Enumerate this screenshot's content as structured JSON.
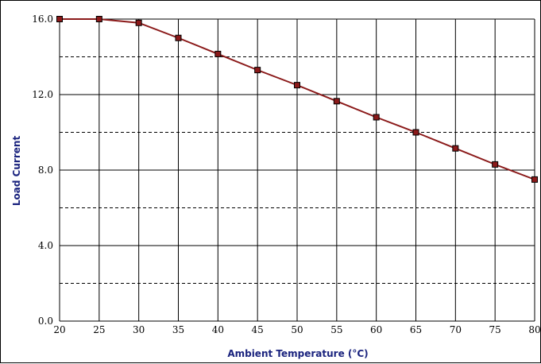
{
  "chart_data": {
    "type": "line",
    "title": "",
    "xlabel": "Ambient Temperature (°C)",
    "ylabel": "Load Current",
    "x": [
      20,
      25,
      30,
      35,
      40,
      45,
      50,
      55,
      60,
      65,
      70,
      75,
      80
    ],
    "series": [
      {
        "values": [
          16.0,
          16.0,
          15.8,
          15.0,
          14.15,
          13.3,
          12.5,
          11.65,
          10.8,
          10.0,
          9.15,
          8.3,
          7.5
        ]
      }
    ],
    "xlim": [
      20,
      80
    ],
    "ylim": [
      0,
      16
    ],
    "x_ticks": [
      20,
      25,
      30,
      35,
      40,
      45,
      50,
      55,
      60,
      65,
      70,
      75,
      80
    ],
    "y_tick_labels": [
      "0.0",
      "4.0",
      "8.0",
      "12.0",
      "16.0"
    ],
    "y_ticks": [
      0,
      4,
      8,
      12,
      16
    ],
    "y_minor_dashed": [
      2,
      6,
      10,
      14
    ],
    "grid": true,
    "line_color": "#8b1a1a",
    "marker_color": "#8b1a1a",
    "marker_border": "#000000",
    "axis_title_color": "#1a237e"
  }
}
